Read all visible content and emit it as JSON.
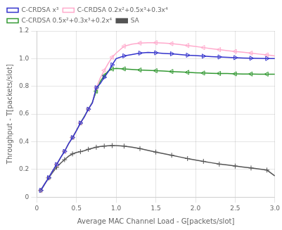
{
  "chart_data": {
    "type": "line",
    "xlabel": "Average MAC Channel Load - G[packets/slot]",
    "ylabel": "Throughput - T[packets/slot]",
    "xlim": [
      0,
      3
    ],
    "ylim": [
      0,
      1.2
    ],
    "xticks": [
      0,
      0.5,
      1,
      1.5,
      2,
      2.5,
      3
    ],
    "yticks": [
      0,
      0.2,
      0.4,
      0.6,
      0.8,
      1,
      1.2
    ],
    "grid": true,
    "legend": "upper left",
    "x": [
      0.05,
      0.1,
      0.15,
      0.2,
      0.25,
      0.3,
      0.35,
      0.4,
      0.45,
      0.5,
      0.55,
      0.6,
      0.65,
      0.7,
      0.75,
      0.8,
      0.85,
      0.9,
      0.95,
      1.0,
      1.1,
      1.2,
      1.3,
      1.4,
      1.5,
      1.6,
      1.7,
      1.8,
      1.9,
      2.0,
      2.1,
      2.2,
      2.3,
      2.4,
      2.5,
      2.6,
      2.7,
      2.8,
      2.9,
      3.0
    ],
    "series": [
      {
        "name": "C-CRDSA x³",
        "color": "#3333cc",
        "marker": "triangle-right",
        "values": [
          0.048,
          0.095,
          0.14,
          0.19,
          0.235,
          0.285,
          0.33,
          0.385,
          0.43,
          0.48,
          0.535,
          0.58,
          0.635,
          0.68,
          0.79,
          0.82,
          0.865,
          0.905,
          0.955,
          1.0,
          1.02,
          1.03,
          1.04,
          1.045,
          1.042,
          1.038,
          1.035,
          1.03,
          1.025,
          1.022,
          1.018,
          1.015,
          1.012,
          1.01,
          1.007,
          1.005,
          1.003,
          1.002,
          1.001,
          1.0
        ]
      },
      {
        "name": "C-CRDSA 0.2x²+0.5x³+0.3x⁴",
        "color": "#ffaacc",
        "marker": "triangle-left",
        "values": [
          0.048,
          0.095,
          0.14,
          0.19,
          0.235,
          0.285,
          0.33,
          0.385,
          0.43,
          0.48,
          0.535,
          0.58,
          0.635,
          0.68,
          0.79,
          0.86,
          0.915,
          0.965,
          1.01,
          1.04,
          1.09,
          1.105,
          1.112,
          1.115,
          1.115,
          1.112,
          1.108,
          1.102,
          1.095,
          1.088,
          1.08,
          1.072,
          1.065,
          1.058,
          1.052,
          1.046,
          1.04,
          1.033,
          1.027,
          1.02
        ]
      },
      {
        "name": "C-CRDSA 0.5x²+0.3x³+0.2x⁴",
        "color": "#339933",
        "marker": "triangle-left",
        "values": [
          0.048,
          0.095,
          0.14,
          0.19,
          0.235,
          0.285,
          0.33,
          0.385,
          0.43,
          0.48,
          0.535,
          0.585,
          0.635,
          0.685,
          0.765,
          0.835,
          0.878,
          0.91,
          0.925,
          0.93,
          0.926,
          0.922,
          0.918,
          0.916,
          0.913,
          0.91,
          0.907,
          0.904,
          0.901,
          0.898,
          0.896,
          0.894,
          0.893,
          0.892,
          0.89,
          0.889,
          0.889,
          0.888,
          0.888,
          0.887
        ]
      },
      {
        "name": "SA",
        "color": "#555555",
        "marker": "plus",
        "values": [
          0.049,
          0.095,
          0.138,
          0.178,
          0.215,
          0.245,
          0.27,
          0.295,
          0.312,
          0.322,
          0.328,
          0.335,
          0.345,
          0.353,
          0.36,
          0.365,
          0.368,
          0.37,
          0.372,
          0.372,
          0.368,
          0.36,
          0.35,
          0.338,
          0.325,
          0.313,
          0.302,
          0.29,
          0.278,
          0.268,
          0.258,
          0.248,
          0.238,
          0.232,
          0.224,
          0.217,
          0.21,
          0.203,
          0.195,
          0.153
        ]
      }
    ]
  }
}
